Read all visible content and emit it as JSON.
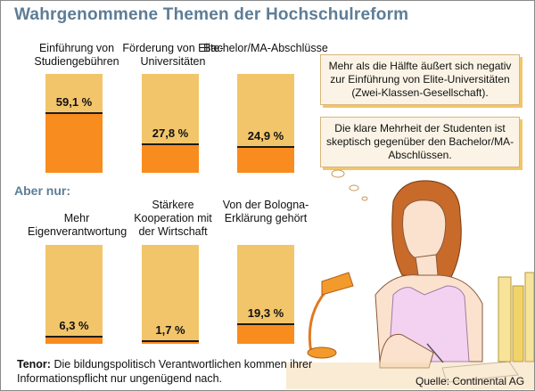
{
  "title": "Wahrgenommene Themen der Hochschulreform",
  "section_label": "Aber nur:",
  "notes": [
    "Mehr als die Hälfte äußert sich negativ zur Einführung von Elite-Universitäten (Zwei-Klassen-Gesellschaft).",
    "Die klare Mehrheit der Studenten ist skeptisch gegenüber den Bachelor/MA-Abschlüssen."
  ],
  "tenor": {
    "label": "Tenor:",
    "text": "Die bildungspolitisch Verantwortlichen kommen ihrer Informationspflicht nur ungenügend nach."
  },
  "source": "Quelle: Continental AG",
  "colors": {
    "bar_bg": "#f2c56b",
    "bar_fill": "#f98c1e",
    "title": "#5d7d96"
  },
  "chart_data": {
    "type": "bar",
    "title": "Wahrgenommene Themen der Hochschulreform",
    "unit": "%",
    "ylim": [
      0,
      100
    ],
    "groups": [
      {
        "label": "",
        "categories": [
          "Einführung von Studiengebühren",
          "Förderung von Elite-Universitäten",
          "Bachelor/MA-Abschlüsse"
        ],
        "values": [
          59.1,
          27.8,
          24.9
        ],
        "value_labels": [
          "59,1 %",
          "27,8 %",
          "24,9 %"
        ]
      },
      {
        "label": "Aber nur:",
        "categories": [
          "Mehr Eigenverantwortung",
          "Stärkere Kooperation mit der Wirtschaft",
          "Von der Bologna-Erklärung gehört"
        ],
        "values": [
          6.3,
          1.7,
          19.3
        ],
        "value_labels": [
          "6,3 %",
          "1,7 %",
          "19,3 %"
        ]
      }
    ]
  }
}
